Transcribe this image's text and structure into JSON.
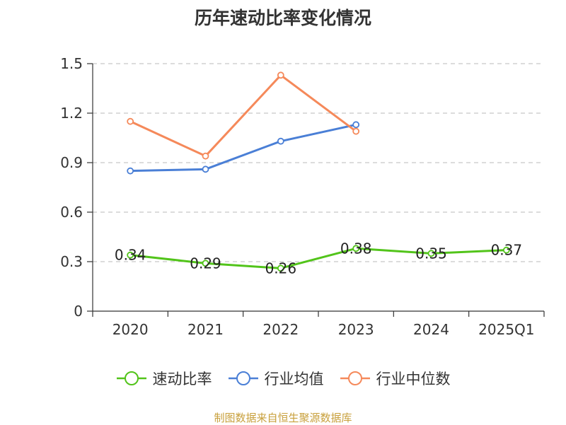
{
  "chart_data": {
    "type": "line",
    "title": "历年速动比率变化情况",
    "categories": [
      "2020",
      "2021",
      "2022",
      "2023",
      "2024",
      "2025Q1"
    ],
    "ylim": [
      0,
      1.5
    ],
    "yticks": [
      "0",
      "0.3",
      "0.6",
      "0.9",
      "1.2",
      "1.5"
    ],
    "ytick_values": [
      0,
      0.3,
      0.6,
      0.9,
      1.2,
      1.5
    ],
    "grid": true,
    "legend_position": "bottom",
    "series": [
      {
        "name": "速动比率",
        "color": "#52c41a",
        "values": [
          0.34,
          0.29,
          0.26,
          0.38,
          0.35,
          0.37
        ],
        "labels": [
          "0.34",
          "0.29",
          "0.26",
          "0.38",
          "0.35",
          "0.37"
        ],
        "show_labels": true
      },
      {
        "name": "行业均值",
        "color": "#4a7fd6",
        "values": [
          0.85,
          0.86,
          1.03,
          1.13,
          null,
          null
        ],
        "show_labels": false
      },
      {
        "name": "行业中位数",
        "color": "#f5895a",
        "values": [
          1.15,
          0.94,
          1.43,
          1.09,
          null,
          null
        ],
        "show_labels": false
      }
    ]
  },
  "source_note": "制图数据来自恒生聚源数据库"
}
